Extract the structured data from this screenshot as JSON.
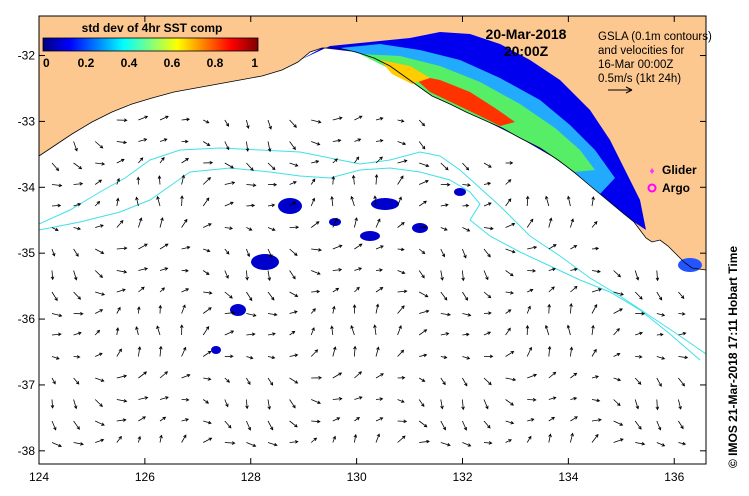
{
  "colorbar": {
    "title": "std dev of 4hr SST comp",
    "ticks": [
      "0",
      "0.2",
      "0.4",
      "0.6",
      "0.8",
      "1"
    ],
    "tick_values": [
      0,
      0.2,
      0.4,
      0.6,
      0.8,
      1
    ],
    "stops": [
      "#00007f",
      "#0000ff",
      "#007fff",
      "#00ffff",
      "#7fff7f",
      "#ffff00",
      "#ff7f00",
      "#ff0000",
      "#7f0000"
    ]
  },
  "date": "20-Mar-2018",
  "time": "20:00Z",
  "gsla_note": {
    "lines": [
      "GSLA (0.1m contours)",
      "and velocities for",
      "16-Mar 00:00Z",
      "0.5m/s (1kt 24h)"
    ]
  },
  "legend": {
    "glider": {
      "label": "Glider",
      "color": "#ff33ff"
    },
    "argo": {
      "label": "Argo",
      "color": "#ff00ff"
    }
  },
  "credit": "© IMOS 21-Mar-2018 17:11 Hobart Time",
  "axes": {
    "lon_ticks": [
      "124",
      "126",
      "128",
      "130",
      "132",
      "134",
      "136"
    ],
    "lon_values": [
      124,
      126,
      128,
      130,
      132,
      134,
      136
    ],
    "lat_ticks": [
      "-32",
      "-33",
      "-34",
      "-35",
      "-36",
      "-37",
      "-38"
    ],
    "lat_values": [
      -32,
      -33,
      -34,
      -35,
      -36,
      -37,
      -38
    ],
    "lon_range": [
      124,
      136.6
    ],
    "lat_range": [
      -38.2,
      -31.4
    ]
  },
  "colors": {
    "land": "#fcc890",
    "coast": "#000000",
    "contour": "#40e0e8",
    "arrow": "#000000"
  }
}
